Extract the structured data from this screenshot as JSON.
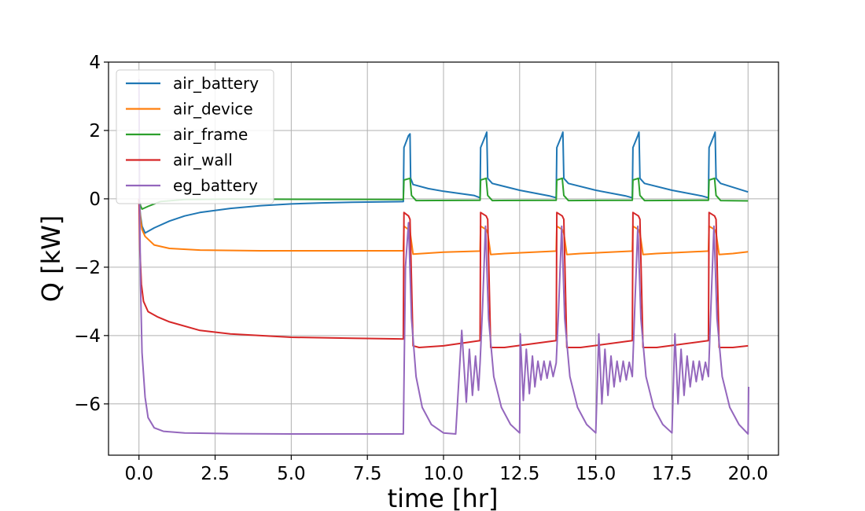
{
  "chart_data": {
    "type": "line",
    "title": "",
    "xlabel": "time [hr]",
    "ylabel": "Q [kW]",
    "xlim": [
      -1.0,
      21.0
    ],
    "ylim": [
      -7.5,
      4.0
    ],
    "xticks": [
      0.0,
      2.5,
      5.0,
      7.5,
      10.0,
      12.5,
      15.0,
      17.5,
      20.0
    ],
    "xtick_labels": [
      "0.0",
      "2.5",
      "5.0",
      "7.5",
      "10.0",
      "12.5",
      "15.0",
      "17.5",
      "20.0"
    ],
    "yticks": [
      4,
      2,
      0,
      -2,
      -4,
      -6
    ],
    "ytick_labels": [
      "4",
      "2",
      "0",
      "−2",
      "−4",
      "−6"
    ],
    "grid": true,
    "legend_position": "upper-left",
    "series": [
      {
        "name": "air_battery",
        "color": "#1f77b4",
        "points": [
          [
            0,
            0
          ],
          [
            0.05,
            -0.5
          ],
          [
            0.1,
            -0.8
          ],
          [
            0.2,
            -1.0
          ],
          [
            0.5,
            -0.85
          ],
          [
            1,
            -0.65
          ],
          [
            1.5,
            -0.5
          ],
          [
            2,
            -0.4
          ],
          [
            3,
            -0.28
          ],
          [
            4,
            -0.2
          ],
          [
            5,
            -0.15
          ],
          [
            6,
            -0.12
          ],
          [
            7,
            -0.1
          ],
          [
            8.68,
            -0.08
          ],
          [
            8.7,
            1.5
          ],
          [
            8.85,
            1.85
          ],
          [
            8.9,
            1.9
          ],
          [
            8.92,
            0.6
          ],
          [
            9,
            0.42
          ],
          [
            9.5,
            0.3
          ],
          [
            10,
            0.22
          ],
          [
            11,
            0.1
          ],
          [
            11.2,
            0.03
          ],
          [
            11.22,
            1.5
          ],
          [
            11.38,
            1.85
          ],
          [
            11.42,
            1.95
          ],
          [
            11.45,
            0.6
          ],
          [
            11.6,
            0.45
          ],
          [
            12.5,
            0.25
          ],
          [
            13.5,
            0.08
          ],
          [
            13.7,
            0.03
          ],
          [
            13.72,
            1.5
          ],
          [
            13.88,
            1.85
          ],
          [
            13.92,
            1.95
          ],
          [
            13.95,
            0.6
          ],
          [
            14.1,
            0.45
          ],
          [
            15,
            0.25
          ],
          [
            16,
            0.08
          ],
          [
            16.2,
            0.03
          ],
          [
            16.22,
            1.5
          ],
          [
            16.38,
            1.85
          ],
          [
            16.42,
            1.95
          ],
          [
            16.45,
            0.6
          ],
          [
            16.6,
            0.45
          ],
          [
            17.5,
            0.25
          ],
          [
            18.5,
            0.08
          ],
          [
            18.7,
            0.03
          ],
          [
            18.72,
            1.5
          ],
          [
            18.88,
            1.85
          ],
          [
            18.92,
            1.95
          ],
          [
            18.95,
            0.6
          ],
          [
            19.1,
            0.45
          ],
          [
            20,
            0.2
          ]
        ]
      },
      {
        "name": "air_device",
        "color": "#ff7f0e",
        "points": [
          [
            0,
            0
          ],
          [
            0.05,
            -0.6
          ],
          [
            0.1,
            -0.9
          ],
          [
            0.2,
            -1.1
          ],
          [
            0.5,
            -1.35
          ],
          [
            1,
            -1.45
          ],
          [
            2,
            -1.5
          ],
          [
            4,
            -1.52
          ],
          [
            8.68,
            -1.52
          ],
          [
            8.7,
            -0.8
          ],
          [
            8.85,
            -0.9
          ],
          [
            8.9,
            -0.95
          ],
          [
            9.0,
            -1.62
          ],
          [
            9.3,
            -1.6
          ],
          [
            10,
            -1.56
          ],
          [
            11.2,
            -1.53
          ],
          [
            11.22,
            -0.8
          ],
          [
            11.4,
            -0.9
          ],
          [
            11.45,
            -1.0
          ],
          [
            11.55,
            -1.63
          ],
          [
            12,
            -1.6
          ],
          [
            13.7,
            -1.53
          ],
          [
            13.72,
            -0.8
          ],
          [
            13.9,
            -0.9
          ],
          [
            13.95,
            -1.0
          ],
          [
            14.05,
            -1.63
          ],
          [
            14.5,
            -1.6
          ],
          [
            16.2,
            -1.53
          ],
          [
            16.22,
            -0.8
          ],
          [
            16.4,
            -0.9
          ],
          [
            16.45,
            -1.0
          ],
          [
            16.55,
            -1.63
          ],
          [
            17,
            -1.6
          ],
          [
            18.7,
            -1.53
          ],
          [
            18.72,
            -0.8
          ],
          [
            18.9,
            -0.9
          ],
          [
            18.95,
            -1.0
          ],
          [
            19.05,
            -1.63
          ],
          [
            19.5,
            -1.6
          ],
          [
            20,
            -1.55
          ]
        ]
      },
      {
        "name": "air_frame",
        "color": "#2ca02c",
        "points": [
          [
            0,
            0
          ],
          [
            0.05,
            -0.2
          ],
          [
            0.1,
            -0.3
          ],
          [
            0.3,
            -0.22
          ],
          [
            0.7,
            -0.08
          ],
          [
            1.5,
            -0.02
          ],
          [
            3,
            -0.01
          ],
          [
            8.68,
            -0.02
          ],
          [
            8.7,
            0.55
          ],
          [
            8.9,
            0.6
          ],
          [
            8.95,
            0.1
          ],
          [
            9.1,
            -0.05
          ],
          [
            11.2,
            -0.04
          ],
          [
            11.22,
            0.55
          ],
          [
            11.4,
            0.6
          ],
          [
            11.45,
            0.1
          ],
          [
            11.6,
            -0.05
          ],
          [
            13.7,
            -0.04
          ],
          [
            13.72,
            0.55
          ],
          [
            13.9,
            0.6
          ],
          [
            13.95,
            0.1
          ],
          [
            14.1,
            -0.05
          ],
          [
            16.2,
            -0.04
          ],
          [
            16.22,
            0.55
          ],
          [
            16.4,
            0.6
          ],
          [
            16.45,
            0.1
          ],
          [
            16.6,
            -0.05
          ],
          [
            18.7,
            -0.04
          ],
          [
            18.72,
            0.55
          ],
          [
            18.9,
            0.6
          ],
          [
            18.95,
            0.1
          ],
          [
            19.1,
            -0.05
          ],
          [
            20,
            -0.06
          ]
        ]
      },
      {
        "name": "air_wall",
        "color": "#d62728",
        "points": [
          [
            0,
            0
          ],
          [
            0.03,
            -1.5
          ],
          [
            0.08,
            -2.5
          ],
          [
            0.15,
            -3.0
          ],
          [
            0.3,
            -3.3
          ],
          [
            0.6,
            -3.45
          ],
          [
            1,
            -3.6
          ],
          [
            2,
            -3.85
          ],
          [
            3,
            -3.95
          ],
          [
            5,
            -4.05
          ],
          [
            7,
            -4.08
          ],
          [
            8.68,
            -4.1
          ],
          [
            8.7,
            -0.4
          ],
          [
            8.85,
            -0.5
          ],
          [
            8.9,
            -0.6
          ],
          [
            9.0,
            -4.3
          ],
          [
            9.2,
            -4.35
          ],
          [
            10,
            -4.3
          ],
          [
            11.2,
            -4.15
          ],
          [
            11.22,
            -0.4
          ],
          [
            11.4,
            -0.5
          ],
          [
            11.45,
            -0.6
          ],
          [
            11.55,
            -4.35
          ],
          [
            12,
            -4.35
          ],
          [
            13.7,
            -4.15
          ],
          [
            13.72,
            -0.4
          ],
          [
            13.9,
            -0.5
          ],
          [
            13.95,
            -0.6
          ],
          [
            14.05,
            -4.35
          ],
          [
            14.5,
            -4.35
          ],
          [
            16.2,
            -4.15
          ],
          [
            16.22,
            -0.4
          ],
          [
            16.4,
            -0.5
          ],
          [
            16.45,
            -0.6
          ],
          [
            16.55,
            -4.35
          ],
          [
            17,
            -4.35
          ],
          [
            18.7,
            -4.15
          ],
          [
            18.72,
            -0.4
          ],
          [
            18.9,
            -0.5
          ],
          [
            18.95,
            -0.6
          ],
          [
            19.05,
            -4.35
          ],
          [
            19.5,
            -4.35
          ],
          [
            20,
            -4.3
          ]
        ]
      },
      {
        "name": "eg_battery",
        "color": "#9467bd",
        "points": [
          [
            0,
            3.5
          ],
          [
            0.02,
            0
          ],
          [
            0.05,
            -2.5
          ],
          [
            0.1,
            -4.5
          ],
          [
            0.2,
            -5.8
          ],
          [
            0.3,
            -6.4
          ],
          [
            0.5,
            -6.7
          ],
          [
            0.8,
            -6.8
          ],
          [
            1.5,
            -6.85
          ],
          [
            3,
            -6.87
          ],
          [
            5,
            -6.88
          ],
          [
            8.68,
            -6.88
          ],
          [
            8.75,
            -2.0
          ],
          [
            8.85,
            -0.7
          ],
          [
            8.95,
            -3.5
          ],
          [
            9.1,
            -5.2
          ],
          [
            9.3,
            -6.1
          ],
          [
            9.6,
            -6.6
          ],
          [
            10,
            -6.85
          ],
          [
            10.4,
            -6.88
          ],
          [
            10.6,
            -3.85
          ],
          [
            10.75,
            -5.95
          ],
          [
            10.85,
            -4.4
          ],
          [
            10.95,
            -5.75
          ],
          [
            11.05,
            -4.6
          ],
          [
            11.15,
            -5.6
          ],
          [
            11.2,
            -4.8
          ],
          [
            11.28,
            -3.2
          ],
          [
            11.38,
            -0.8
          ],
          [
            11.48,
            -3.5
          ],
          [
            11.65,
            -5.2
          ],
          [
            11.9,
            -6.1
          ],
          [
            12.2,
            -6.6
          ],
          [
            12.5,
            -6.85
          ],
          [
            12.52,
            -3.95
          ],
          [
            12.62,
            -5.9
          ],
          [
            12.72,
            -4.4
          ],
          [
            12.82,
            -5.7
          ],
          [
            12.92,
            -4.6
          ],
          [
            13.0,
            -5.5
          ],
          [
            13.1,
            -4.75
          ],
          [
            13.2,
            -5.3
          ],
          [
            13.3,
            -4.75
          ],
          [
            13.4,
            -5.25
          ],
          [
            13.5,
            -4.75
          ],
          [
            13.6,
            -5.2
          ],
          [
            13.7,
            -4.8
          ],
          [
            13.78,
            -3.2
          ],
          [
            13.88,
            -0.8
          ],
          [
            13.98,
            -3.5
          ],
          [
            14.15,
            -5.2
          ],
          [
            14.4,
            -6.1
          ],
          [
            14.7,
            -6.6
          ],
          [
            15.0,
            -6.85
          ],
          [
            15.1,
            -3.95
          ],
          [
            15.2,
            -6.0
          ],
          [
            15.3,
            -4.4
          ],
          [
            15.4,
            -5.75
          ],
          [
            15.5,
            -4.6
          ],
          [
            15.6,
            -5.5
          ],
          [
            15.7,
            -4.75
          ],
          [
            15.8,
            -5.35
          ],
          [
            15.9,
            -4.75
          ],
          [
            16.0,
            -5.3
          ],
          [
            16.1,
            -4.78
          ],
          [
            16.2,
            -5.2
          ],
          [
            16.28,
            -3.2
          ],
          [
            16.38,
            -0.8
          ],
          [
            16.48,
            -3.5
          ],
          [
            16.65,
            -5.2
          ],
          [
            16.9,
            -6.1
          ],
          [
            17.2,
            -6.6
          ],
          [
            17.5,
            -6.85
          ],
          [
            17.6,
            -3.95
          ],
          [
            17.7,
            -6.0
          ],
          [
            17.8,
            -4.4
          ],
          [
            17.9,
            -5.75
          ],
          [
            18.0,
            -4.6
          ],
          [
            18.1,
            -5.5
          ],
          [
            18.2,
            -4.75
          ],
          [
            18.3,
            -5.35
          ],
          [
            18.4,
            -4.75
          ],
          [
            18.5,
            -5.3
          ],
          [
            18.6,
            -4.78
          ],
          [
            18.7,
            -5.2
          ],
          [
            18.78,
            -3.2
          ],
          [
            18.88,
            -0.8
          ],
          [
            18.98,
            -3.5
          ],
          [
            19.15,
            -5.2
          ],
          [
            19.4,
            -6.1
          ],
          [
            19.7,
            -6.6
          ],
          [
            20.0,
            -6.88
          ],
          [
            20.02,
            -5.5
          ]
        ]
      }
    ]
  }
}
